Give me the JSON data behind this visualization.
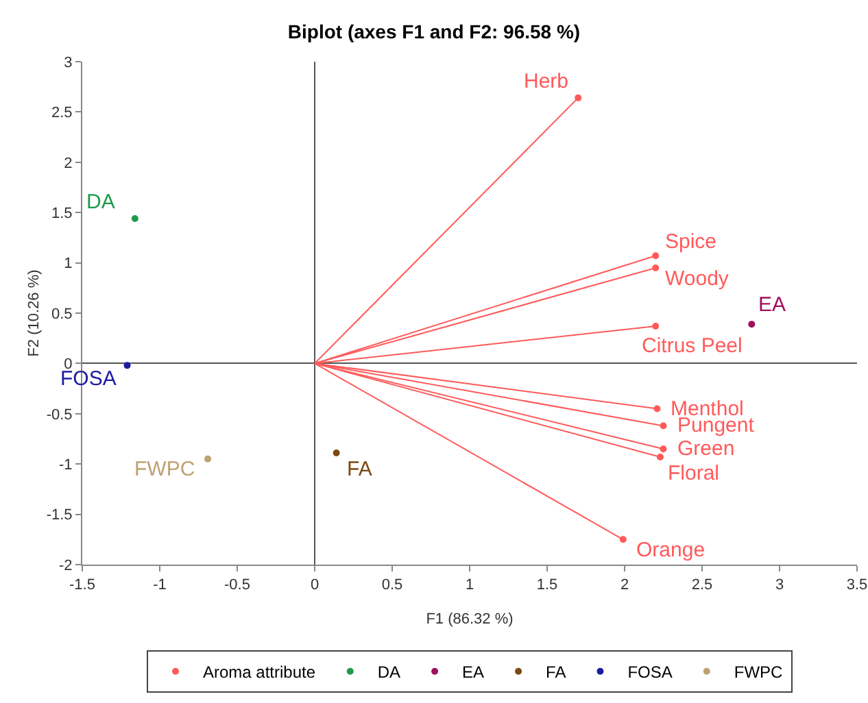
{
  "chart_data": {
    "type": "scatter",
    "title": "Biplot (axes F1 and F2: 96.58 %)",
    "xlabel": "F1 (86.32 %)",
    "ylabel": "F2 (10.26 %)",
    "xlim": [
      -1.5,
      3.5
    ],
    "xticks": [
      -1.5,
      -1,
      -0.5,
      0,
      0.5,
      1,
      1.5,
      2,
      2.5,
      3,
      3.5
    ],
    "ylim": [
      -2,
      3
    ],
    "yticks": [
      -2,
      -1.5,
      -1,
      -0.5,
      0,
      0.5,
      1,
      1.5,
      2,
      2.5,
      3
    ],
    "legend": "bottom",
    "marker": "circle",
    "series": [
      {
        "type": "line",
        "marker": "none",
        "color": "#ff5a5a",
        "x": [
          0,
          1.7
        ],
        "values": [
          0,
          2.64
        ]
      },
      {
        "type": "line",
        "marker": "none",
        "color": "#ff5a5a",
        "x": [
          0,
          2.2
        ],
        "values": [
          0,
          1.07
        ]
      },
      {
        "type": "line",
        "marker": "none",
        "color": "#ff5a5a",
        "x": [
          0,
          2.2
        ],
        "values": [
          0,
          0.95
        ]
      },
      {
        "type": "line",
        "marker": "none",
        "color": "#ff5a5a",
        "x": [
          0,
          2.2
        ],
        "values": [
          0,
          0.37
        ]
      },
      {
        "type": "line",
        "marker": "none",
        "color": "#ff5a5a",
        "x": [
          0,
          2.21
        ],
        "values": [
          0,
          -0.45
        ]
      },
      {
        "type": "line",
        "marker": "none",
        "color": "#ff5a5a",
        "x": [
          0,
          2.25
        ],
        "values": [
          0,
          -0.62
        ]
      },
      {
        "type": "line",
        "marker": "none",
        "color": "#ff5a5a",
        "x": [
          0,
          2.25
        ],
        "values": [
          0,
          -0.85
        ]
      },
      {
        "type": "line",
        "marker": "none",
        "color": "#ff5a5a",
        "x": [
          0,
          2.23
        ],
        "values": [
          0,
          -0.93
        ]
      },
      {
        "type": "line",
        "marker": "none",
        "color": "#ff5a5a",
        "x": [
          0,
          1.99
        ],
        "values": [
          0,
          -1.75
        ]
      },
      {
        "name": "Aroma attribute",
        "color": "#ff5a5a",
        "x": [
          1.7,
          2.2,
          2.2,
          2.2,
          2.21,
          2.25,
          2.25,
          2.23,
          1.99
        ],
        "values": [
          2.64,
          1.07,
          0.95,
          0.37,
          -0.45,
          -0.62,
          -0.85,
          -0.93,
          -1.75
        ]
      },
      {
        "name": "DA",
        "color": "#1f9a4a",
        "x": [
          -1.16
        ],
        "values": [
          1.44
        ]
      },
      {
        "name": "EA",
        "color": "#a0105e",
        "x": [
          2.82
        ],
        "values": [
          0.39
        ]
      },
      {
        "name": "FA",
        "color": "#7a4a12",
        "x": [
          0.14
        ],
        "values": [
          -0.89
        ]
      },
      {
        "name": "FOSA",
        "color": "#1c1ca0",
        "x": [
          -1.21
        ],
        "values": [
          -0.02
        ]
      },
      {
        "name": "FWPC",
        "color": "#bfa070",
        "x": [
          -0.69
        ],
        "values": [
          -0.95
        ]
      }
    ],
    "annotations": [
      {
        "text": "Herb",
        "x": 1.7,
        "y": 2.64
      },
      {
        "text": "Spice",
        "x": 2.2,
        "y": 1.07
      },
      {
        "text": "Woody",
        "x": 2.2,
        "y": 0.95
      },
      {
        "text": "Citrus Peel",
        "x": 2.2,
        "y": 0.37
      },
      {
        "text": "Menthol",
        "x": 2.21,
        "y": -0.45
      },
      {
        "text": "Pungent",
        "x": 2.25,
        "y": -0.62
      },
      {
        "text": "Green",
        "x": 2.25,
        "y": -0.85
      },
      {
        "text": "Floral",
        "x": 2.23,
        "y": -0.93
      },
      {
        "text": "Orange",
        "x": 1.99,
        "y": -1.75
      },
      {
        "text": "DA",
        "x": -1.16,
        "y": 1.44
      },
      {
        "text": "EA",
        "x": 2.82,
        "y": 0.39
      },
      {
        "text": "FA",
        "x": 0.14,
        "y": -0.89
      },
      {
        "text": "FOSA",
        "x": -1.21,
        "y": -0.02
      },
      {
        "text": "FWPC",
        "x": -0.69,
        "y": -0.95
      }
    ]
  }
}
